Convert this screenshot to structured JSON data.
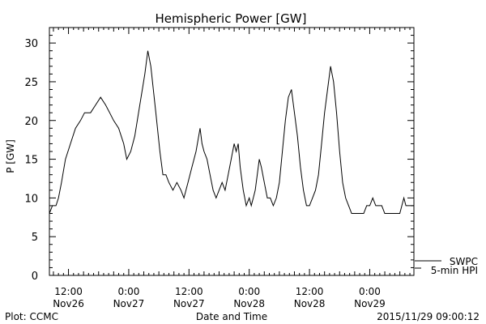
{
  "footer": {
    "left": "Plot: CCMC",
    "center": "Date and Time",
    "right": "2015/11/29 09:00:12"
  },
  "chart_data": {
    "type": "line",
    "title": "Hemispheric Power [GW]",
    "xlabel": "Date and Time",
    "ylabel": "P [GW]",
    "ylim": [
      0,
      32
    ],
    "y_ticks": [
      0,
      5,
      10,
      15,
      20,
      25,
      30
    ],
    "x_unit": "hours since 2015-11-26 00:00 UT",
    "xlim": [
      8.2,
      80.8
    ],
    "x_ticks": [
      {
        "x": 12,
        "time": "12:00",
        "date": "Nov26"
      },
      {
        "x": 24,
        "time": "0:00",
        "date": "Nov27"
      },
      {
        "x": 36,
        "time": "12:00",
        "date": "Nov27"
      },
      {
        "x": 48,
        "time": "0:00",
        "date": "Nov28"
      },
      {
        "x": 60,
        "time": "12:00",
        "date": "Nov28"
      },
      {
        "x": 72,
        "time": "0:00",
        "date": "Nov29"
      }
    ],
    "legend": [
      "SWPC",
      "5-min HPI"
    ],
    "legend_position": "bottom-right outside",
    "grid": false,
    "series": [
      {
        "name": "5-min HPI",
        "x": [
          8.2,
          8.8,
          9.5,
          10.0,
          10.6,
          11.4,
          12.4,
          13.4,
          14.4,
          15.2,
          16.4,
          17.4,
          18.4,
          19.4,
          20.2,
          21.0,
          22.0,
          23.0,
          23.6,
          24.4,
          25.2,
          26.2,
          27.2,
          27.8,
          28.4,
          29.4,
          30.2,
          30.8,
          31.4,
          32.0,
          32.8,
          33.6,
          34.4,
          35.0,
          35.4,
          35.8,
          36.6,
          37.4,
          38.2,
          38.6,
          39.0,
          39.6,
          40.2,
          40.8,
          41.4,
          42.0,
          42.6,
          43.2,
          43.8,
          44.4,
          45.0,
          45.4,
          45.8,
          46.2,
          46.8,
          47.4,
          48.0,
          48.4,
          48.8,
          49.2,
          49.6,
          50.0,
          50.4,
          51.0,
          51.6,
          52.2,
          52.8,
          53.4,
          54.0,
          54.6,
          55.2,
          55.8,
          56.4,
          57.0,
          57.6,
          58.2,
          58.8,
          59.4,
          60.0,
          60.6,
          61.2,
          61.8,
          62.4,
          63.0,
          63.6,
          64.2,
          64.8,
          65.4,
          66.0,
          66.6,
          67.2,
          67.8,
          68.4,
          69.0,
          69.6,
          70.2,
          70.8,
          71.4,
          72.0,
          72.6,
          73.2,
          73.8,
          74.4,
          75.0,
          75.6,
          76.2,
          76.8,
          77.4,
          78.0,
          78.4,
          78.8,
          79.2,
          79.6,
          80.0,
          80.8
        ],
        "y": [
          8,
          9,
          9,
          10,
          12,
          15,
          17,
          19,
          20,
          21,
          21,
          22,
          23,
          22,
          21,
          20,
          19,
          17,
          15,
          16,
          18,
          22,
          26,
          29,
          27,
          21,
          16,
          13,
          13,
          12,
          11,
          12,
          11,
          10,
          11,
          12,
          14,
          16,
          19,
          17,
          16,
          15,
          13,
          11,
          10,
          11,
          12,
          11,
          13,
          15,
          17,
          16,
          17,
          14,
          11,
          9,
          10,
          9,
          10,
          11,
          13,
          15,
          14,
          12,
          10,
          10,
          9,
          10,
          12,
          16,
          20,
          23,
          24,
          21,
          18,
          14,
          11,
          9,
          9,
          10,
          11,
          13,
          17,
          21,
          24,
          27,
          25,
          21,
          16,
          12,
          10,
          9,
          8,
          8,
          8,
          8,
          8,
          9,
          9,
          10,
          9,
          9,
          9,
          8,
          8,
          8,
          8,
          8,
          8,
          9,
          10,
          9,
          9,
          9,
          9
        ]
      }
    ]
  }
}
